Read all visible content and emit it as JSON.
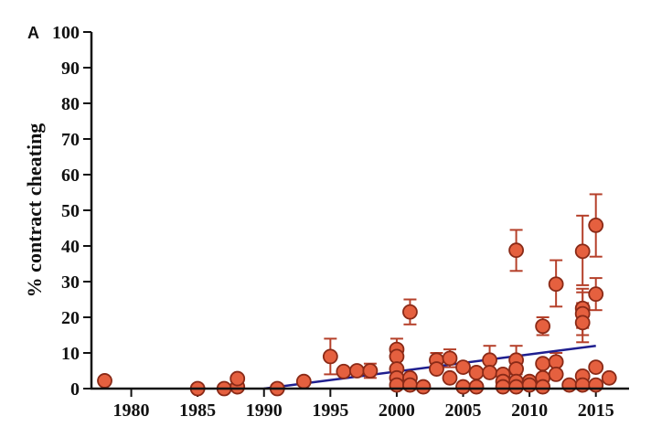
{
  "panel_label": "A",
  "chart_data": {
    "type": "scatter",
    "title": "",
    "xlabel": "",
    "ylabel": "% contract cheating",
    "xlim": [
      1977,
      2017.5
    ],
    "ylim": [
      0,
      100
    ],
    "x_ticks": [
      1980,
      1985,
      1990,
      1995,
      2000,
      2005,
      2010,
      2015
    ],
    "y_ticks": [
      0,
      10,
      20,
      30,
      40,
      50,
      60,
      70,
      80,
      90,
      100
    ],
    "grid": false,
    "legend": "none",
    "colors": {
      "point_fill": "#e5603f",
      "point_edge": "#8a2a17",
      "error_bar": "#b5402a",
      "trend_line": "#1f1f8f",
      "axis": "#111111"
    },
    "trend_line": {
      "x": [
        1990,
        2015
      ],
      "y": [
        0,
        12
      ]
    },
    "points": [
      {
        "x": 1978,
        "y": 2.2
      },
      {
        "x": 1985,
        "y": 0
      },
      {
        "x": 1987,
        "y": 0
      },
      {
        "x": 1988,
        "y": 0.5
      },
      {
        "x": 1988,
        "y": 2.8
      },
      {
        "x": 1991,
        "y": 0
      },
      {
        "x": 1993,
        "y": 2
      },
      {
        "x": 1995,
        "y": 9,
        "err": [
          4,
          14
        ]
      },
      {
        "x": 1996,
        "y": 4.8
      },
      {
        "x": 1997,
        "y": 5
      },
      {
        "x": 1998,
        "y": 5,
        "err": [
          3,
          7
        ]
      },
      {
        "x": 2000,
        "y": 11,
        "err": [
          8,
          14
        ]
      },
      {
        "x": 2000,
        "y": 9
      },
      {
        "x": 2000,
        "y": 5.5
      },
      {
        "x": 2000,
        "y": 3
      },
      {
        "x": 2000,
        "y": 1
      },
      {
        "x": 2001,
        "y": 21.5,
        "err": [
          18,
          25
        ]
      },
      {
        "x": 2001,
        "y": 3
      },
      {
        "x": 2001,
        "y": 1
      },
      {
        "x": 2002,
        "y": 0.5
      },
      {
        "x": 2003,
        "y": 8,
        "err": [
          5,
          10
        ]
      },
      {
        "x": 2003,
        "y": 5.5
      },
      {
        "x": 2004,
        "y": 8.5,
        "err": [
          6,
          11
        ]
      },
      {
        "x": 2004,
        "y": 3
      },
      {
        "x": 2005,
        "y": 6
      },
      {
        "x": 2005,
        "y": 0.5
      },
      {
        "x": 2006,
        "y": 4.5
      },
      {
        "x": 2006,
        "y": 0.5
      },
      {
        "x": 2007,
        "y": 8,
        "err": [
          4,
          12
        ]
      },
      {
        "x": 2007,
        "y": 4.5
      },
      {
        "x": 2008,
        "y": 4
      },
      {
        "x": 2008,
        "y": 2
      },
      {
        "x": 2008,
        "y": 0.5
      },
      {
        "x": 2009,
        "y": 38.8,
        "err": [
          33,
          44.5
        ]
      },
      {
        "x": 2009,
        "y": 8,
        "err": [
          4,
          12
        ]
      },
      {
        "x": 2009,
        "y": 5.5
      },
      {
        "x": 2009,
        "y": 2
      },
      {
        "x": 2009,
        "y": 0.5
      },
      {
        "x": 2010,
        "y": 2
      },
      {
        "x": 2010,
        "y": 1
      },
      {
        "x": 2011,
        "y": 17.5,
        "err": [
          15,
          20
        ]
      },
      {
        "x": 2011,
        "y": 7
      },
      {
        "x": 2011,
        "y": 3
      },
      {
        "x": 2011,
        "y": 0.5
      },
      {
        "x": 2012,
        "y": 29.3,
        "err": [
          23,
          36
        ]
      },
      {
        "x": 2012,
        "y": 7.5,
        "err": [
          5,
          10
        ]
      },
      {
        "x": 2012,
        "y": 4
      },
      {
        "x": 2013,
        "y": 1
      },
      {
        "x": 2014,
        "y": 38.5,
        "err": [
          29,
          48.5
        ]
      },
      {
        "x": 2014,
        "y": 22.5,
        "err": [
          17,
          28
        ]
      },
      {
        "x": 2014,
        "y": 21,
        "err": [
          15,
          27
        ]
      },
      {
        "x": 2014,
        "y": 18.5,
        "err": [
          13,
          24
        ]
      },
      {
        "x": 2014,
        "y": 3.5
      },
      {
        "x": 2014,
        "y": 1
      },
      {
        "x": 2015,
        "y": 45.8,
        "err": [
          37,
          54.5
        ]
      },
      {
        "x": 2015,
        "y": 26.5,
        "err": [
          22,
          31
        ]
      },
      {
        "x": 2015,
        "y": 6
      },
      {
        "x": 2015,
        "y": 1
      },
      {
        "x": 2016,
        "y": 3
      }
    ]
  }
}
